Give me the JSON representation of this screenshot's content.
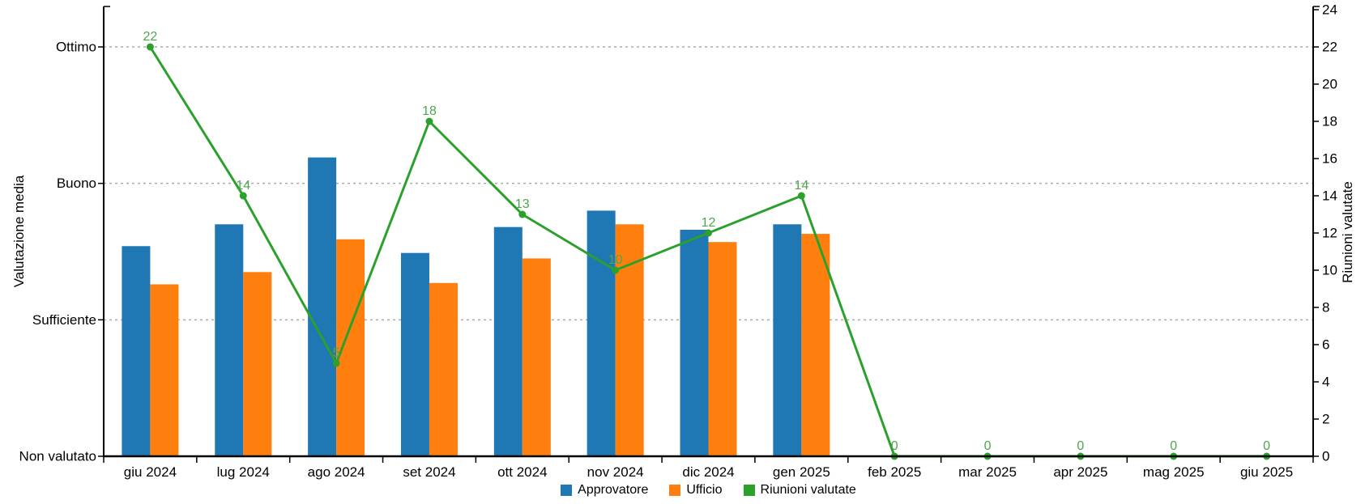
{
  "chart_data": {
    "type": "bar",
    "combo": "clustered vertical bars with line series on secondary right axis",
    "categories": [
      "giu 2024",
      "lug 2024",
      "ago 2024",
      "set 2024",
      "ott 2024",
      "nov 2024",
      "dic 2024",
      "gen 2025",
      "feb 2025",
      "mar 2025",
      "apr 2025",
      "mag 2025",
      "giu 2025"
    ],
    "series": [
      {
        "name": "Approvatore",
        "type": "bar",
        "axis": "left",
        "color": "#1F77B4",
        "values": [
          1.54,
          1.7,
          2.19,
          1.49,
          1.68,
          1.8,
          1.66,
          1.7,
          null,
          null,
          null,
          null,
          null
        ]
      },
      {
        "name": "Ufficio",
        "type": "bar",
        "axis": "left",
        "color": "#FF7F0E",
        "values": [
          1.26,
          1.35,
          1.59,
          1.27,
          1.45,
          1.7,
          1.57,
          1.63,
          null,
          null,
          null,
          null,
          null
        ]
      },
      {
        "name": "Riunioni valutate",
        "type": "line",
        "axis": "right",
        "color": "#2CA02C",
        "label_color": "#4CA64C",
        "show_point_labels": true,
        "values": [
          22,
          14,
          5,
          18,
          13,
          10,
          12,
          14,
          0,
          0,
          0,
          0,
          0
        ]
      }
    ],
    "left_axis": {
      "title": "Valutazione media",
      "tick_labels": [
        "Non valutato",
        "Sufficiente",
        "Buono",
        "Ottimo"
      ],
      "tick_rating_values": [
        0,
        1,
        2,
        3
      ],
      "top_label_aligns_with_right_axis_value": 22
    },
    "right_axis": {
      "title": "Riunioni valutate",
      "min": 0,
      "max": 24,
      "step": 2,
      "tick_labels": [
        "0",
        "2",
        "4",
        "6",
        "8",
        "10",
        "12",
        "14",
        "16",
        "18",
        "20",
        "22",
        "24"
      ]
    },
    "grid": {
      "horizontal_dashed_lines_at_ratings": [
        1,
        2,
        3
      ],
      "color": "#ABABAB",
      "style": "dashed"
    },
    "legend_position": "bottom-center"
  },
  "axis_titles": {
    "left": "Valutazione media",
    "right": "Riunioni valutate"
  },
  "legend": {
    "items": [
      {
        "label": "Approvatore",
        "color": "#1F77B4"
      },
      {
        "label": "Ufficio",
        "color": "#FF7F0E"
      },
      {
        "label": "Riunioni valutate",
        "color": "#2CA02C"
      }
    ]
  },
  "colors": {
    "axis": "#000000",
    "gridline": "#ABABAB",
    "background": "#FFFFFF"
  }
}
